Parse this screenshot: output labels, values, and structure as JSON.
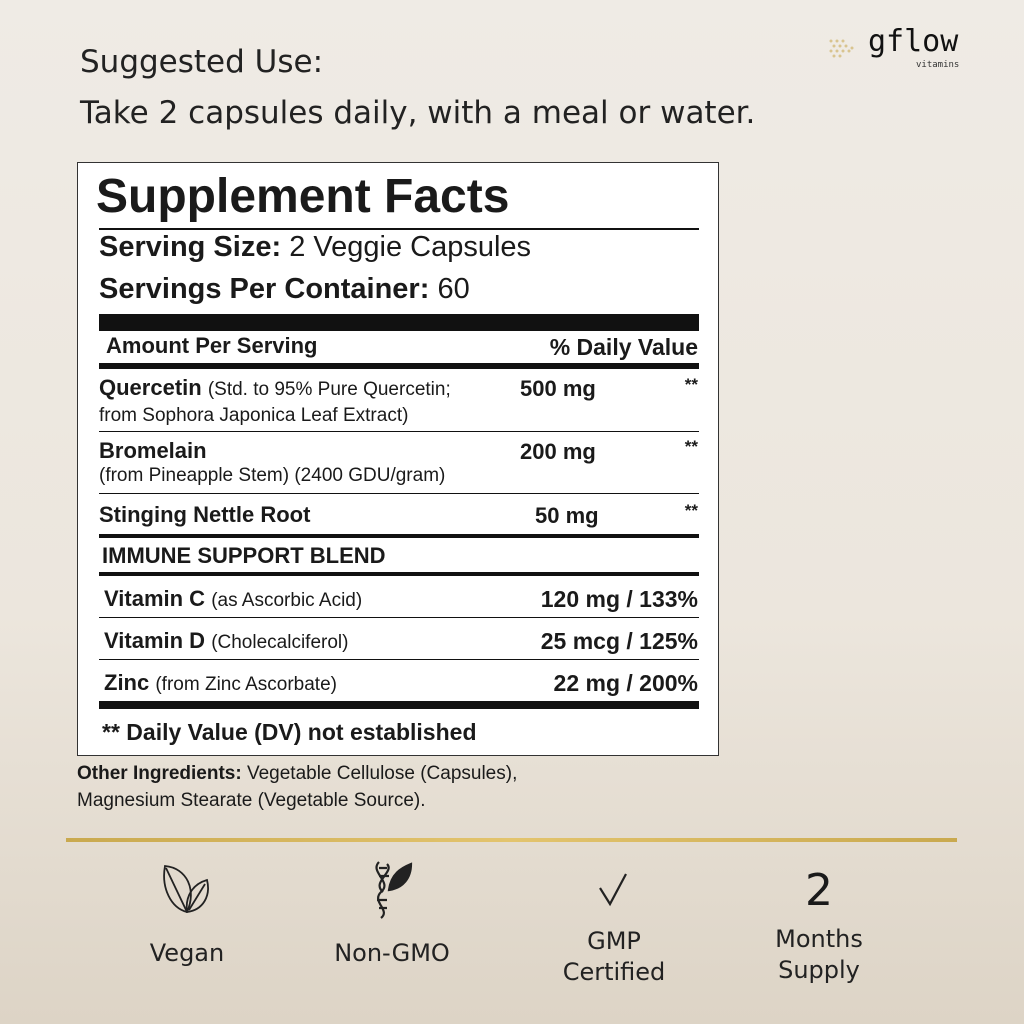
{
  "suggested_use": {
    "heading": "Suggested Use:",
    "text": "Take 2 capsules daily, with a meal or water."
  },
  "logo": {
    "name": "gflow",
    "tagline": "vitamins"
  },
  "facts": {
    "title": "Supplement Facts",
    "serving_size_label": "Serving Size:",
    "serving_size": "2 Veggie Capsules",
    "servings_label": "Servings Per Container:",
    "servings": "60",
    "amount_header": "Amount Per Serving",
    "dv_header": "% Daily Value",
    "rows": [
      {
        "name": "Quercetin",
        "detail": "(Std. to 95% Pure Quercetin;",
        "detail2": "from Sophora Japonica Leaf Extract)",
        "amount": "500 mg",
        "dv": "**"
      },
      {
        "name": "Bromelain",
        "detail2": "(from Pineapple Stem) (2400 GDU/gram)",
        "amount": "200 mg",
        "dv": "**"
      },
      {
        "name": "Stinging Nettle Root",
        "amount": "50 mg",
        "dv": "**"
      }
    ],
    "blend_title": "IMMUNE SUPPORT BLEND",
    "blend": [
      {
        "name": "Vitamin C",
        "detail": "(as Ascorbic Acid)",
        "value": "120 mg / 133%"
      },
      {
        "name": "Vitamin D",
        "detail": "(Cholecalciferol)",
        "value": "25 mcg / 125%"
      },
      {
        "name": "Zinc",
        "detail": "(from Zinc Ascorbate)",
        "value": "22 mg / 200%"
      }
    ],
    "footnote": "** Daily Value (DV) not established"
  },
  "other_ingredients": {
    "label": "Other Ingredients:",
    "line1": "Vegetable Cellulose (Capsules),",
    "line2": "Magnesium Stearate (Vegetable Source)."
  },
  "badges": [
    {
      "icon": "leaf-icon",
      "line1": "Vegan"
    },
    {
      "icon": "dna-leaf-icon",
      "line1": "Non-GMO"
    },
    {
      "icon": "checkmark-icon",
      "line1": "GMP",
      "line2": "Certified"
    },
    {
      "icon": "number",
      "number": "2",
      "line1": "Months",
      "line2": "Supply"
    }
  ],
  "colors": {
    "gold": "#d4b45c",
    "background": "#ece6dd"
  }
}
